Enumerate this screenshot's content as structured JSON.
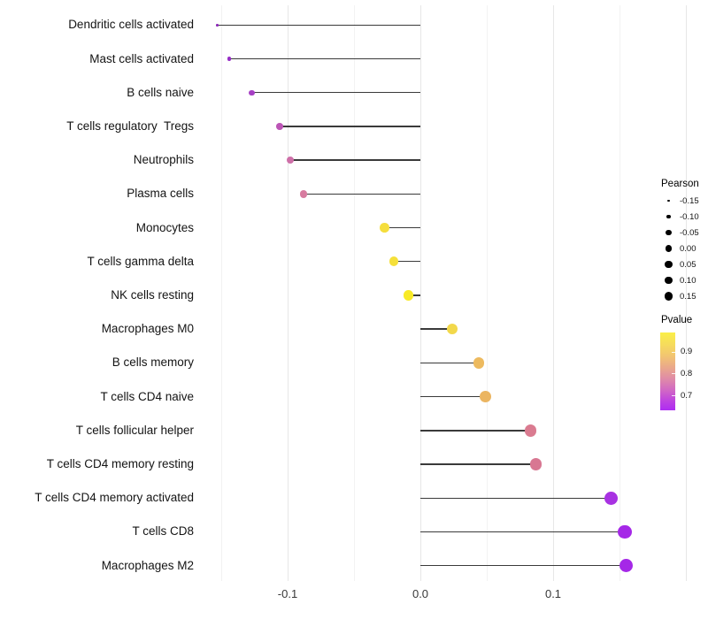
{
  "chart_data": {
    "type": "scatter",
    "subtype": "lollipop",
    "orientation": "horizontal",
    "title": "",
    "xlabel": "",
    "ylabel": "",
    "xlim": [
      -0.159,
      0.212
    ],
    "x_tick_values": [
      -0.1,
      0.0,
      0.1
    ],
    "x_tick_labels": [
      "-0.1",
      "0.0",
      "0.1"
    ],
    "x_major_gridlines": [
      -0.1,
      0.0,
      0.1,
      0.2
    ],
    "x_minor_gridlines": [
      -0.15,
      -0.05,
      0.05,
      0.15
    ],
    "grid": "vertical gridlines only, light gray on white",
    "size_encoding": "Pearson",
    "color_encoding": "Pvalue",
    "points": [
      {
        "label": "Dendritic cells activated",
        "pearson": -0.153,
        "pvalue_approx": 0.67,
        "color": "#8a27b8"
      },
      {
        "label": "Mast cells activated",
        "pearson": -0.144,
        "pvalue_approx": 0.68,
        "color": "#962dc6"
      },
      {
        "label": "B cells naive",
        "pearson": -0.127,
        "pvalue_approx": 0.71,
        "color": "#a63fc4"
      },
      {
        "label": "T cells regulatory  Tregs",
        "pearson": -0.106,
        "pvalue_approx": 0.75,
        "color": "#bc55b6"
      },
      {
        "label": "Neutrophils",
        "pearson": -0.098,
        "pvalue_approx": 0.78,
        "color": "#ce6fa8"
      },
      {
        "label": "Plasma cells",
        "pearson": -0.088,
        "pvalue_approx": 0.8,
        "color": "#d77b9f"
      },
      {
        "label": "Monocytes",
        "pearson": -0.027,
        "pvalue_approx": 0.93,
        "color": "#f5de3d"
      },
      {
        "label": "T cells gamma delta",
        "pearson": -0.02,
        "pvalue_approx": 0.93,
        "color": "#f5e03a"
      },
      {
        "label": "NK cells resting",
        "pearson": -0.009,
        "pvalue_approx": 0.97,
        "color": "#f8ea26"
      },
      {
        "label": "Macrophages M0",
        "pearson": 0.024,
        "pvalue_approx": 0.91,
        "color": "#f2d84b"
      },
      {
        "label": "B cells memory",
        "pearson": 0.044,
        "pvalue_approx": 0.87,
        "color": "#edba5f"
      },
      {
        "label": "T cells CD4 naive",
        "pearson": 0.049,
        "pvalue_approx": 0.86,
        "color": "#ebb561"
      },
      {
        "label": "T cells follicular helper",
        "pearson": 0.083,
        "pvalue_approx": 0.79,
        "color": "#da7b90"
      },
      {
        "label": "T cells CD4 memory resting",
        "pearson": 0.087,
        "pvalue_approx": 0.79,
        "color": "#d87792"
      },
      {
        "label": "T cells CD4 memory activated",
        "pearson": 0.144,
        "pvalue_approx": 0.66,
        "color": "#a832e2"
      },
      {
        "label": "T cells CD8",
        "pearson": 0.154,
        "pvalue_approx": 0.65,
        "color": "#a528e7"
      },
      {
        "label": "Macrophages M2",
        "pearson": 0.155,
        "pvalue_approx": 0.65,
        "color": "#a528e7"
      }
    ]
  },
  "legend": {
    "pearson": {
      "title": "Pearson",
      "break_values": [
        -0.15,
        -0.1,
        -0.05,
        0.0,
        0.05,
        0.1,
        0.15
      ],
      "break_labels": [
        "-0.15",
        "-0.10",
        "-0.05",
        "0.00",
        "0.05",
        "0.10",
        "0.15"
      ],
      "dot_color": "#000000"
    },
    "pvalue": {
      "title": "Pvalue",
      "tick_values": [
        0.9,
        0.8,
        0.7
      ],
      "tick_labels": [
        "0.9",
        "0.8",
        "0.7"
      ],
      "gradient_top_color": "#faef47",
      "gradient_bottom_color": "#ae2df2"
    }
  },
  "colors": {
    "background": "#ffffff",
    "stem": "#3a3a3a",
    "major_gridline": "#e7e7e7",
    "minor_gridline": "#f2f2f2",
    "axis_text": "#383838",
    "label_text": "#141414"
  }
}
